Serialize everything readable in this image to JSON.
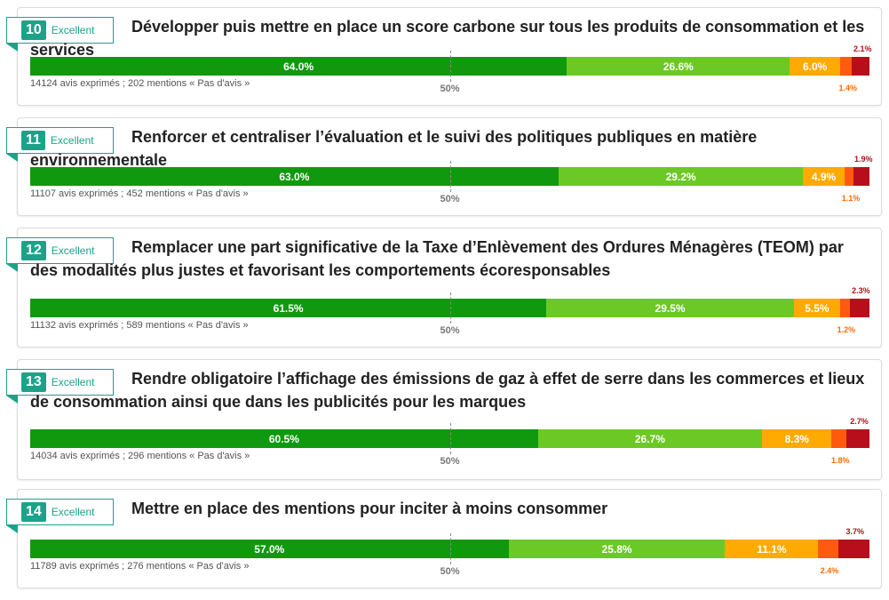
{
  "colors": {
    "very_positive": "#10990f",
    "positive": "#6cc925",
    "neutral": "#ffaa00",
    "negative": "#ff5a0f",
    "very_negative": "#b80e1b"
  },
  "half_label": "50%",
  "chart_data": [
    {
      "type": "bar",
      "rank": "10",
      "badge": "Excellent",
      "title": "Développer puis mettre en place un score carbone sur tous les produits de consommation et les services",
      "counts": "14124 avis exprimés ; 202 mentions « Pas d'avis »",
      "values": [
        64.0,
        26.6,
        6.0,
        1.4,
        2.1
      ],
      "labels": [
        "64.0%",
        "26.6%",
        "6.0%",
        "1.4%",
        "2.1%"
      ]
    },
    {
      "type": "bar",
      "rank": "11",
      "badge": "Excellent",
      "title": "Renforcer et centraliser l’évaluation et le suivi des politiques publiques en matière environnementale",
      "counts": "11107 avis exprimés ; 452 mentions « Pas d'avis »",
      "values": [
        63.0,
        29.2,
        4.9,
        1.1,
        1.9
      ],
      "labels": [
        "63.0%",
        "29.2%",
        "4.9%",
        "1.1%",
        "1.9%"
      ]
    },
    {
      "type": "bar",
      "rank": "12",
      "badge": "Excellent",
      "title": "Remplacer une part significative de la Taxe d’Enlèvement des Ordures Ménagères (TEOM) par des modalités plus justes et favorisant les comportements écoresponsables",
      "counts": "11132 avis exprimés ; 589 mentions « Pas d'avis »",
      "values": [
        61.5,
        29.5,
        5.5,
        1.2,
        2.3
      ],
      "labels": [
        "61.5%",
        "29.5%",
        "5.5%",
        "1.2%",
        "2.3%"
      ]
    },
    {
      "type": "bar",
      "rank": "13",
      "badge": "Excellent",
      "title": "Rendre obligatoire l’affichage des émissions de gaz à effet de serre dans les commerces et lieux de consommation ainsi que dans les publicités pour les marques",
      "counts": "14034 avis exprimés ; 296 mentions « Pas d'avis »",
      "values": [
        60.5,
        26.7,
        8.3,
        1.8,
        2.7
      ],
      "labels": [
        "60.5%",
        "26.7%",
        "8.3%",
        "1.8%",
        "2.7%"
      ]
    },
    {
      "type": "bar",
      "rank": "14",
      "badge": "Excellent",
      "title": "Mettre en place des mentions pour inciter à moins consommer",
      "counts": "11789 avis exprimés ; 276 mentions « Pas d'avis »",
      "values": [
        57.0,
        25.8,
        11.1,
        2.4,
        3.7
      ],
      "labels": [
        "57.0%",
        "25.8%",
        "11.1%",
        "2.4%",
        "3.7%"
      ]
    }
  ]
}
